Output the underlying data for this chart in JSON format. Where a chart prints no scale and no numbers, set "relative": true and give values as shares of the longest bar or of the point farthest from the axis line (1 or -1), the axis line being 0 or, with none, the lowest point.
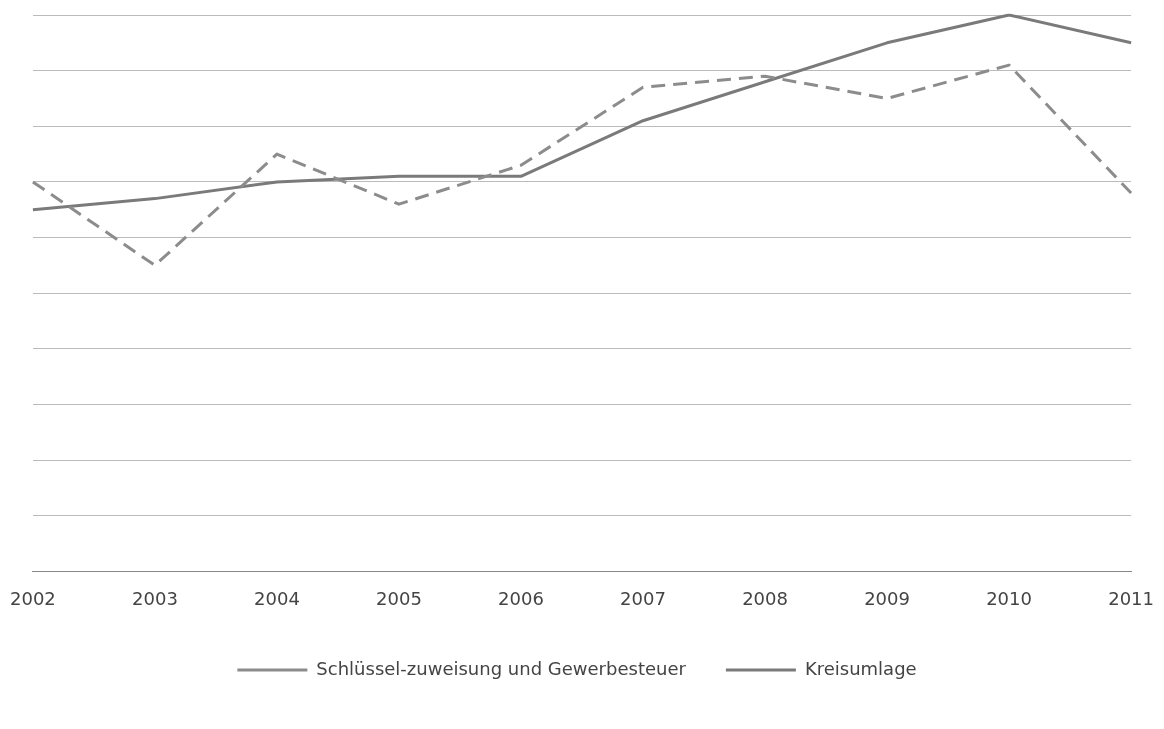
{
  "chart_data": {
    "type": "line",
    "relative": true,
    "grid": "y",
    "legend": "bottom",
    "marker": "none",
    "categories": [
      "2002",
      "2003",
      "2004",
      "2005",
      "2006",
      "2007",
      "2008",
      "2009",
      "2010",
      "2011"
    ],
    "series": [
      {
        "name": "Schlüssel-zuweisung und Gewerbesteuer",
        "color": "#8c8c8c",
        "line_style": "dashed",
        "values": [
          0.7,
          0.55,
          0.75,
          0.66,
          0.73,
          0.87,
          0.89,
          0.85,
          0.91,
          0.68
        ]
      },
      {
        "name": "Kreisumlage",
        "color": "#7a7a7a",
        "line_style": "solid",
        "values": [
          0.65,
          0.67,
          0.7,
          0.71,
          0.71,
          0.81,
          0.88,
          0.95,
          1.0,
          0.95
        ]
      }
    ]
  }
}
